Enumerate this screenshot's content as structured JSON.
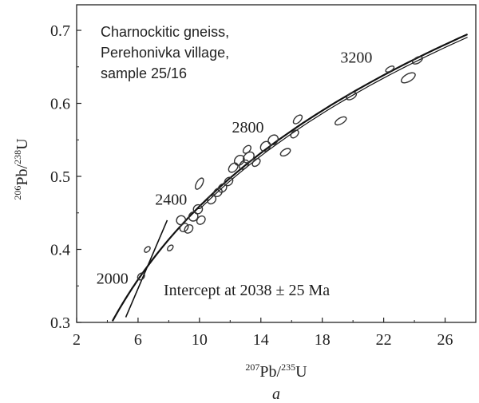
{
  "chart_data": {
    "type": "scatter",
    "annotation_lines": [
      "Charnockitic gneiss,",
      "Perehonivka village,",
      "sample 25/16"
    ],
    "intercept_text": "Intercept at 2038 ± 25 Ma",
    "panel_label": "a",
    "x_axis": {
      "label_mass": "207",
      "label_pb": "Pb/",
      "label_u_mass": "235",
      "label_u": "U",
      "ticks": [
        2,
        6,
        10,
        14,
        18,
        22,
        26
      ],
      "range": [
        2,
        28
      ]
    },
    "y_axis": {
      "label_mass": "206",
      "label_pb": "Pb/",
      "label_u_mass": "238",
      "label_u": "U",
      "ticks": [
        0.3,
        0.4,
        0.5,
        0.6,
        0.7
      ],
      "tick_labels": [
        "0.3",
        "0.4",
        "0.5",
        "0.6",
        "0.7"
      ],
      "range": [
        0.3,
        0.735
      ]
    },
    "concordia": {
      "age_labels": [
        {
          "text": "2000",
          "x": 6.3,
          "y": 0.362
        },
        {
          "text": "2400",
          "x": 9.5,
          "y": 0.448
        },
        {
          "text": "2800",
          "x": 14.3,
          "y": 0.545
        },
        {
          "text": "3200",
          "x": 22.3,
          "y": 0.645
        }
      ]
    },
    "discordia": {
      "x1": 5.2,
      "y1": 0.307,
      "x2": 7.9,
      "y2": 0.44
    },
    "ellipses": [
      {
        "x": 6.2,
        "y": 0.363,
        "rx": 0.15,
        "ry": 0.004,
        "rot": -45
      },
      {
        "x": 6.6,
        "y": 0.4,
        "rx": 0.12,
        "ry": 0.003,
        "rot": -45
      },
      {
        "x": 8.1,
        "y": 0.402,
        "rx": 0.12,
        "ry": 0.003,
        "rot": -45
      },
      {
        "x": 8.8,
        "y": 0.44,
        "rx": 0.2,
        "ry": 0.006,
        "rot": -45
      },
      {
        "x": 9.0,
        "y": 0.43,
        "rx": 0.2,
        "ry": 0.005,
        "rot": -45
      },
      {
        "x": 9.3,
        "y": 0.428,
        "rx": 0.2,
        "ry": 0.005,
        "rot": -45
      },
      {
        "x": 9.6,
        "y": 0.445,
        "rx": 0.2,
        "ry": 0.006,
        "rot": -45
      },
      {
        "x": 9.9,
        "y": 0.455,
        "rx": 0.2,
        "ry": 0.006,
        "rot": -45
      },
      {
        "x": 10.1,
        "y": 0.44,
        "rx": 0.2,
        "ry": 0.005,
        "rot": -45
      },
      {
        "x": 10.0,
        "y": 0.49,
        "rx": 0.3,
        "ry": 0.004,
        "rot": -60
      },
      {
        "x": 10.8,
        "y": 0.468,
        "rx": 0.2,
        "ry": 0.005,
        "rot": -45
      },
      {
        "x": 11.2,
        "y": 0.478,
        "rx": 0.2,
        "ry": 0.005,
        "rot": -45
      },
      {
        "x": 11.5,
        "y": 0.484,
        "rx": 0.2,
        "ry": 0.005,
        "rot": -45
      },
      {
        "x": 11.9,
        "y": 0.493,
        "rx": 0.2,
        "ry": 0.005,
        "rot": -45
      },
      {
        "x": 12.2,
        "y": 0.512,
        "rx": 0.25,
        "ry": 0.005,
        "rot": -45
      },
      {
        "x": 12.6,
        "y": 0.522,
        "rx": 0.25,
        "ry": 0.006,
        "rot": -45
      },
      {
        "x": 12.9,
        "y": 0.516,
        "rx": 0.25,
        "ry": 0.005,
        "rot": -45
      },
      {
        "x": 13.2,
        "y": 0.526,
        "rx": 0.3,
        "ry": 0.006,
        "rot": -45
      },
      {
        "x": 13.1,
        "y": 0.537,
        "rx": 0.2,
        "ry": 0.004,
        "rot": -45
      },
      {
        "x": 13.7,
        "y": 0.519,
        "rx": 0.2,
        "ry": 0.004,
        "rot": -45
      },
      {
        "x": 14.3,
        "y": 0.541,
        "rx": 0.25,
        "ry": 0.006,
        "rot": -45
      },
      {
        "x": 14.8,
        "y": 0.55,
        "rx": 0.25,
        "ry": 0.006,
        "rot": -45
      },
      {
        "x": 15.6,
        "y": 0.533,
        "rx": 0.25,
        "ry": 0.004,
        "rot": -30
      },
      {
        "x": 16.2,
        "y": 0.558,
        "rx": 0.2,
        "ry": 0.004,
        "rot": -45
      },
      {
        "x": 16.4,
        "y": 0.578,
        "rx": 0.25,
        "ry": 0.004,
        "rot": -45
      },
      {
        "x": 19.2,
        "y": 0.576,
        "rx": 0.3,
        "ry": 0.004,
        "rot": -30
      },
      {
        "x": 19.9,
        "y": 0.61,
        "rx": 0.25,
        "ry": 0.004,
        "rot": -30
      },
      {
        "x": 22.4,
        "y": 0.647,
        "rx": 0.2,
        "ry": 0.003,
        "rot": -30
      },
      {
        "x": 23.6,
        "y": 0.635,
        "rx": 0.4,
        "ry": 0.005,
        "rot": -30
      },
      {
        "x": 24.2,
        "y": 0.659,
        "rx": 0.25,
        "ry": 0.004,
        "rot": -30
      }
    ]
  }
}
